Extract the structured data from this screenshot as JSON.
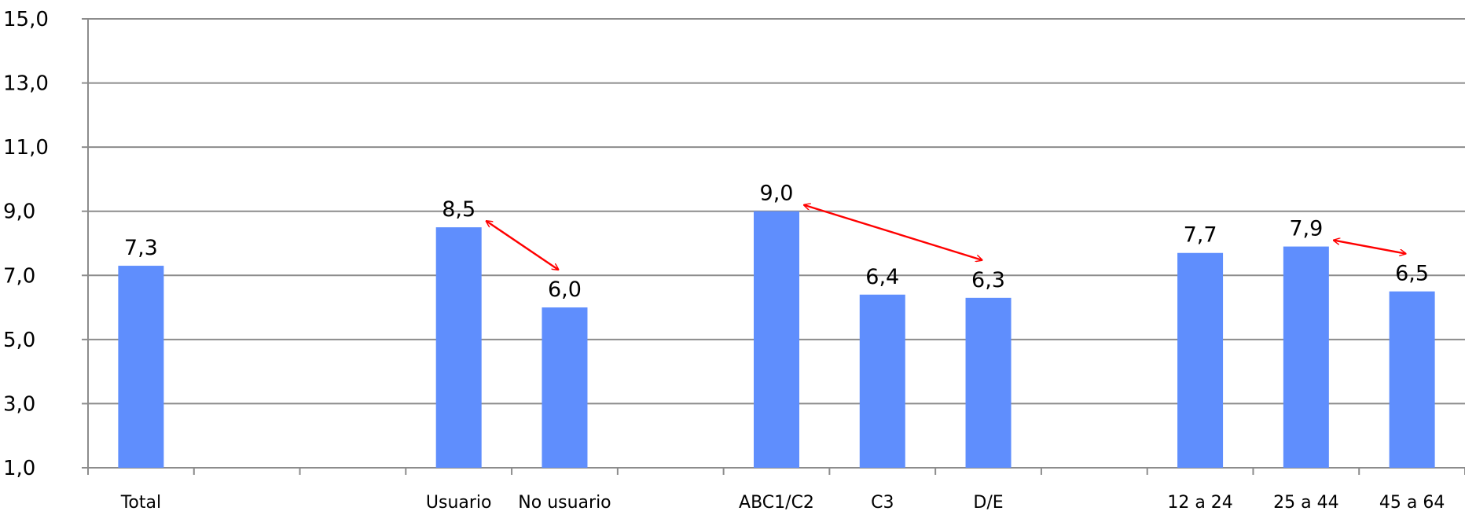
{
  "chart_data": {
    "type": "bar",
    "title": "",
    "xlabel": "",
    "ylabel": "",
    "ylim": [
      1,
      15
    ],
    "yticks": [
      1,
      3,
      5,
      7,
      9,
      11,
      13,
      15
    ],
    "ytick_labels": [
      "1,0",
      "3,0",
      "5,0",
      "7,0",
      "9,0",
      "11,0",
      "13,0",
      "15,0"
    ],
    "grid": true,
    "legend": "none",
    "bar_color": "#5f8efd",
    "grid_color": "#8c8c8c",
    "arrow_color": "#ff0000",
    "slots": [
      "Total",
      "",
      "",
      "Usuario",
      "No usuario",
      "",
      "ABC1/C2",
      "C3",
      "D/E",
      "",
      "12 a 24",
      "25 a 44",
      "45 a 64"
    ],
    "categories": [
      "Total",
      "Usuario",
      "No usuario",
      "ABC1/C2",
      "C3",
      "D/E",
      "12 a 24",
      "25 a 44",
      "45 a 64"
    ],
    "values": [
      7.3,
      8.5,
      6.0,
      9.0,
      6.4,
      6.3,
      7.7,
      7.9,
      6.5
    ],
    "value_labels": [
      "7,3",
      "8,5",
      "6,0",
      "9,0",
      "6,4",
      "6,3",
      "7,7",
      "7,9",
      "6,5"
    ],
    "comparison_arrows": [
      {
        "from": "Usuario",
        "to": "No usuario"
      },
      {
        "from": "ABC1/C2",
        "to": "D/E"
      },
      {
        "from": "25 a 44",
        "to": "45 a 64"
      }
    ]
  }
}
